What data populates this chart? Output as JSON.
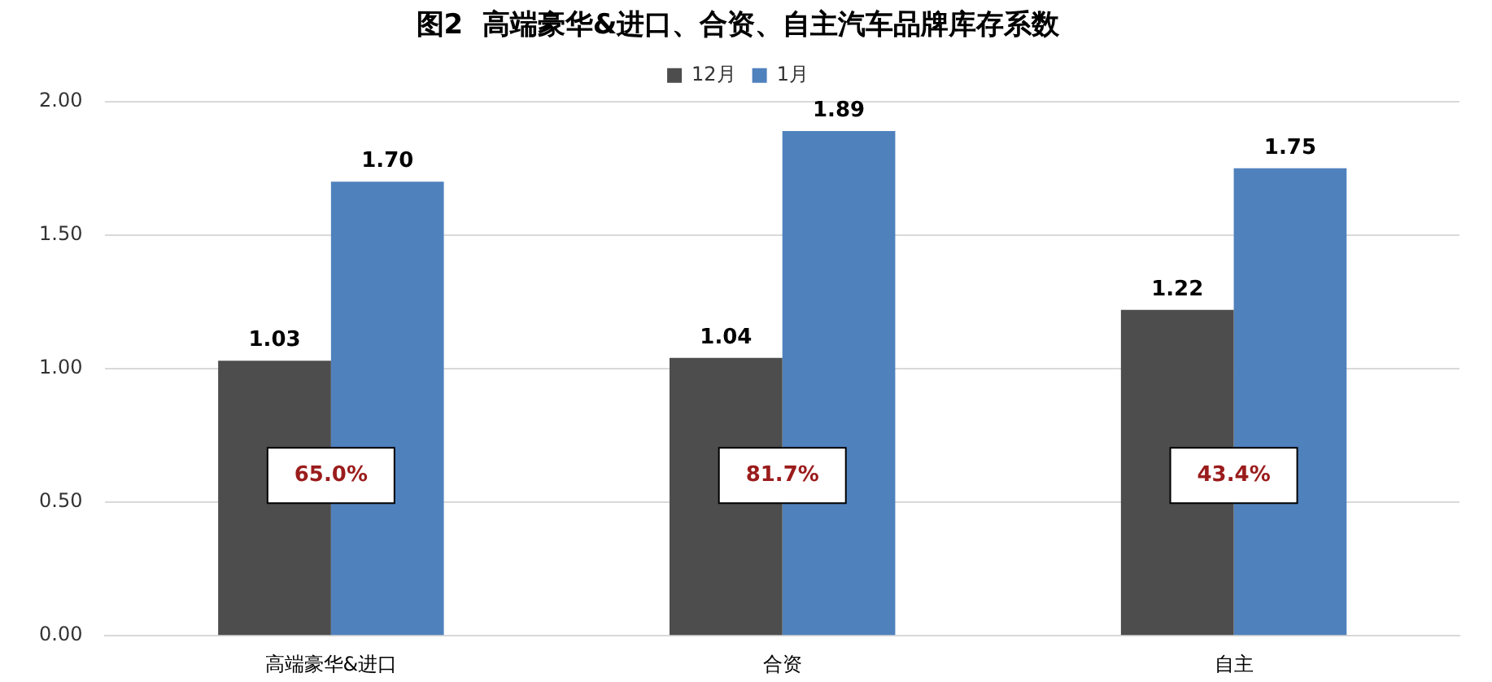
{
  "chart_data": {
    "type": "bar",
    "title": "图2  高端豪华&进口、合资、自主汽车品牌库存系数",
    "categories": [
      "高端豪华&进口",
      "合资",
      "自主"
    ],
    "series": [
      {
        "name": "12月",
        "color": "#4d4d4d",
        "values": [
          1.03,
          1.04,
          1.22
        ],
        "value_labels": [
          "1.03",
          "1.04",
          "1.22"
        ]
      },
      {
        "name": "1月",
        "color": "#4f81bd",
        "values": [
          1.7,
          1.89,
          1.75
        ],
        "value_labels": [
          "1.70",
          "1.89",
          "1.75"
        ]
      }
    ],
    "ylim": [
      0,
      2
    ],
    "yticks": [
      {
        "value": 0,
        "label": "0.00"
      },
      {
        "value": 0.5,
        "label": "0.50"
      },
      {
        "value": 1,
        "label": "1.00"
      },
      {
        "value": 1.5,
        "label": "1.50"
      },
      {
        "value": 2,
        "label": "2.00"
      }
    ],
    "grid": "y",
    "legend": "top",
    "annotations": [
      {
        "text": "65.0%",
        "x": "高端豪华&进口",
        "y": 0.6
      },
      {
        "text": "81.7%",
        "x": "合资",
        "y": 0.6
      },
      {
        "text": "43.4%",
        "x": "自主",
        "y": 0.6
      }
    ]
  }
}
